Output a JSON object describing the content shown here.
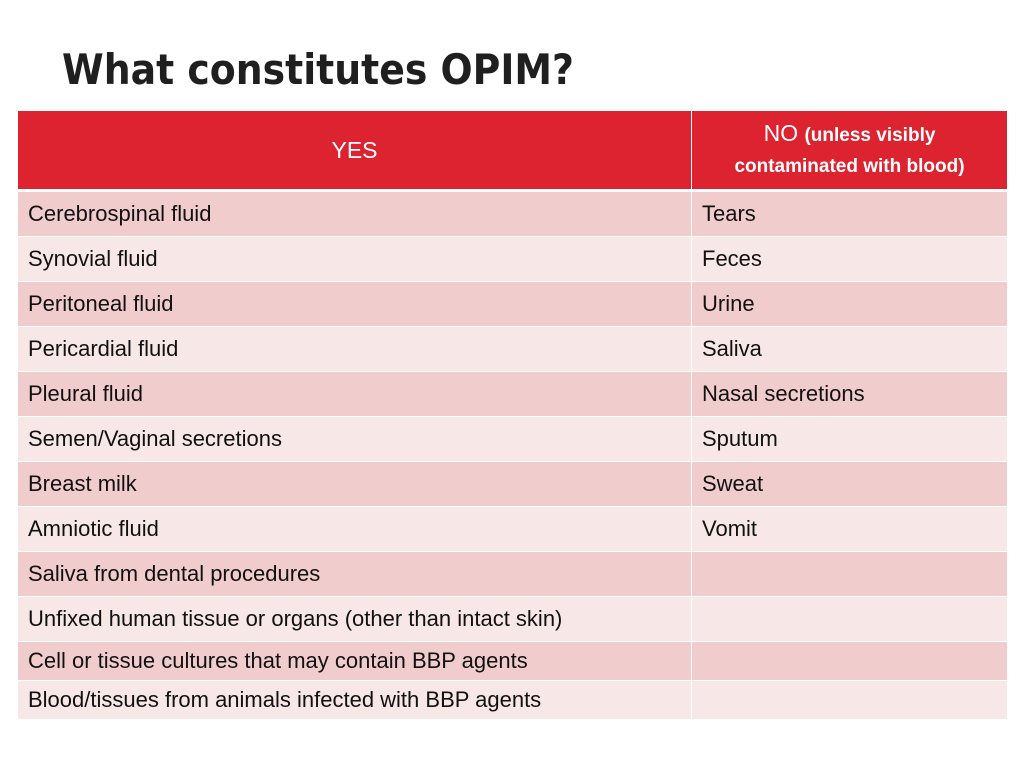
{
  "title": "What constitutes OPIM?",
  "table": {
    "header": {
      "yes": "YES",
      "no": "NO",
      "no_note": "(unless visibly contaminated with blood)"
    },
    "rows": [
      {
        "yes": "Cerebrospinal fluid",
        "no": "Tears"
      },
      {
        "yes": "Synovial fluid",
        "no": "Feces"
      },
      {
        "yes": "Peritoneal fluid",
        "no": "Urine"
      },
      {
        "yes": "Pericardial fluid",
        "no": "Saliva"
      },
      {
        "yes": "Pleural fluid",
        "no": "Nasal secretions"
      },
      {
        "yes": "Semen/Vaginal secretions",
        "no": "Sputum"
      },
      {
        "yes": "Breast milk",
        "no": "Sweat"
      },
      {
        "yes": "Amniotic fluid",
        "no": "Vomit"
      },
      {
        "yes": "Saliva from dental procedures",
        "no": ""
      },
      {
        "yes": "Unfixed human tissue or organs (other than intact skin)",
        "no": ""
      },
      {
        "yes": "Cell or tissue cultures that may contain BBP agents",
        "no": ""
      },
      {
        "yes": "Blood/tissues from animals infected with BBP agents",
        "no": ""
      }
    ]
  },
  "colors": {
    "header_bg": "#dd2230",
    "row_odd_bg": "#f1cccd",
    "row_even_bg": "#f8e7e7"
  }
}
